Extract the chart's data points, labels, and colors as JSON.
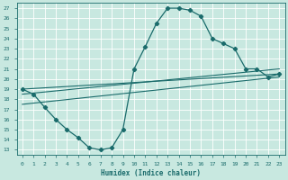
{
  "xlabel": "Humidex (Indice chaleur)",
  "xlim": [
    -0.5,
    23.5
  ],
  "ylim": [
    12.5,
    27.5
  ],
  "xticks": [
    0,
    1,
    2,
    3,
    4,
    5,
    6,
    7,
    8,
    9,
    10,
    11,
    12,
    13,
    14,
    15,
    16,
    17,
    18,
    19,
    20,
    21,
    22,
    23
  ],
  "yticks": [
    13,
    14,
    15,
    16,
    17,
    18,
    19,
    20,
    21,
    22,
    23,
    24,
    25,
    26,
    27
  ],
  "background_color": "#c8e8e0",
  "grid_color": "#ffffff",
  "line_color": "#1a6b6b",
  "curve": {
    "x": [
      0,
      1,
      2,
      3,
      4,
      5,
      6,
      7,
      8,
      9,
      10,
      11,
      12,
      13,
      14,
      15,
      16,
      17,
      18,
      19,
      20,
      21,
      22,
      23
    ],
    "y": [
      19.0,
      18.5,
      17.2,
      16.0,
      15.0,
      14.2,
      13.2,
      13.0,
      13.2,
      15.0,
      21.0,
      23.2,
      25.5,
      27.0,
      27.0,
      26.8,
      26.2,
      24.0,
      23.5,
      23.0,
      21.0,
      21.0,
      20.2,
      20.5
    ]
  },
  "trend_lines": [
    {
      "x": [
        0,
        23
      ],
      "y": [
        19.0,
        20.5
      ]
    },
    {
      "x": [
        0,
        23
      ],
      "y": [
        18.5,
        21.0
      ]
    },
    {
      "x": [
        0,
        23
      ],
      "y": [
        17.5,
        20.2
      ]
    }
  ]
}
